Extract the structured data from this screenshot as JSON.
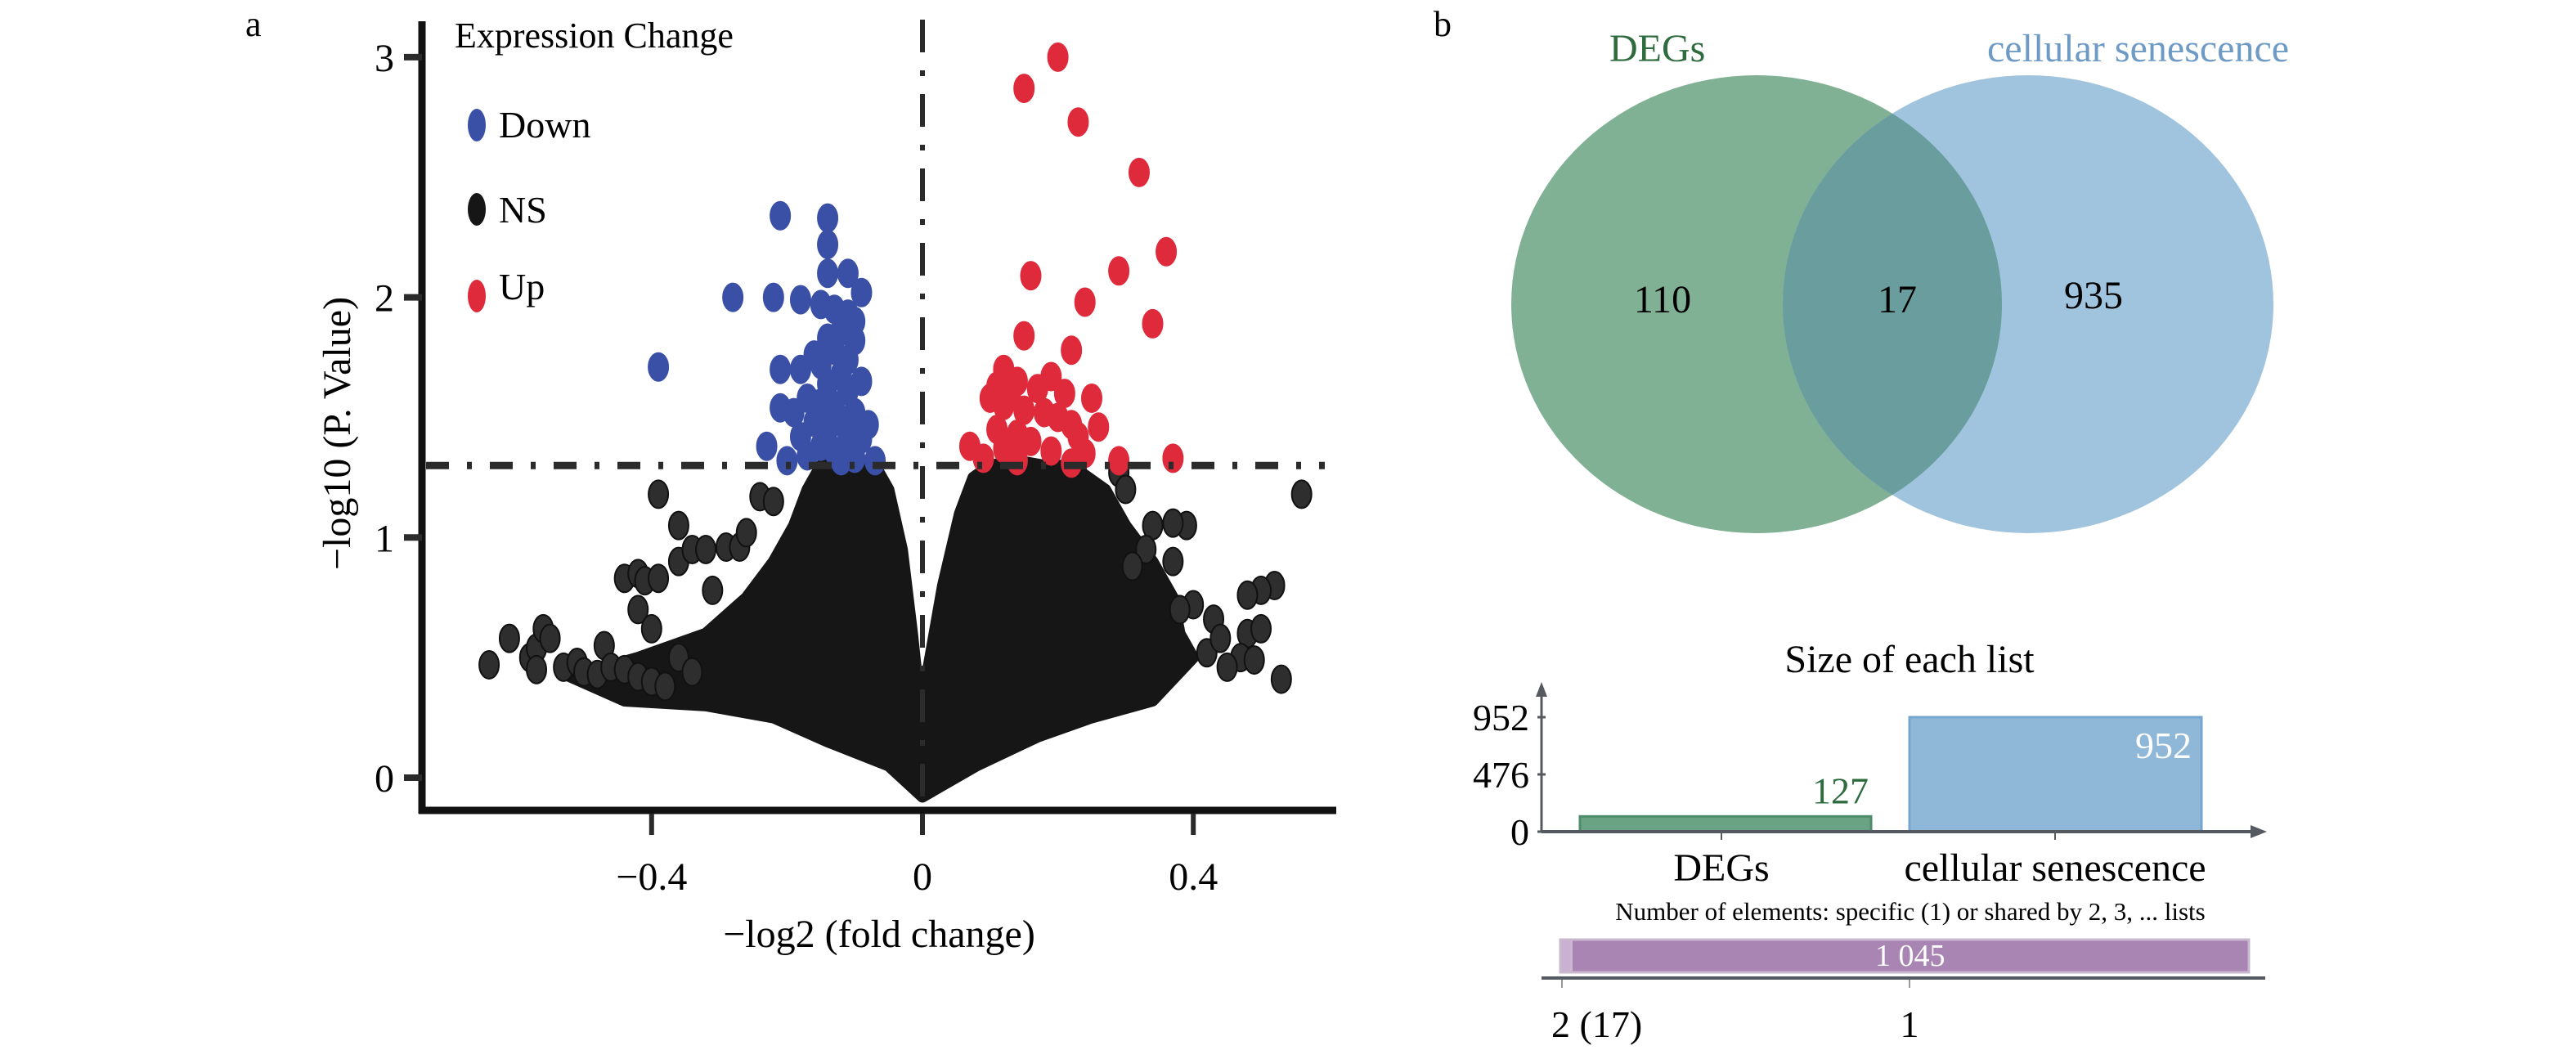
{
  "panel_labels": {
    "a": "a",
    "b": "b"
  },
  "colors": {
    "down": "#3a4fa6",
    "ns": "#161616",
    "up": "#de2a3a",
    "degs": "#6aa383",
    "degs_text": "#2e6b3e",
    "cellular": "#8fb8d8",
    "cellular_text": "#6e9ac6",
    "overlap": "#6a9e9e",
    "purple": "#a985b3",
    "axis": "#111111",
    "gray_axis": "#555a60"
  },
  "chart_data": [
    {
      "id": "volcano",
      "type": "scatter",
      "title": "",
      "xlabel": "−log2 (fold change)",
      "ylabel": "−log10 (P. Value)",
      "xlim": [
        -0.66,
        0.63
      ],
      "ylim": [
        -0.13,
        3.05
      ],
      "xticks": [
        {
          "v": -0.4,
          "label": "−0.4"
        },
        {
          "v": 0,
          "label": "0"
        },
        {
          "v": 0.4,
          "label": "0.4"
        }
      ],
      "yticks": [
        {
          "v": 0,
          "label": "0"
        },
        {
          "v": 1,
          "label": "1"
        },
        {
          "v": 2,
          "label": "2"
        },
        {
          "v": 3,
          "label": "3"
        }
      ],
      "threshold_y": 1.3,
      "threshold_x": 0,
      "grid": false,
      "legend": {
        "title": "Expression Change",
        "placement": "top-left",
        "entries": [
          {
            "key": "down",
            "label": "Down"
          },
          {
            "key": "ns",
            "label": "NS"
          },
          {
            "key": "up",
            "label": "Up"
          }
        ]
      },
      "series": [
        {
          "name": "Down",
          "key": "down",
          "points": [
            [
              -0.39,
              1.71
            ],
            [
              -0.28,
              2.0
            ],
            [
              -0.22,
              2.0
            ],
            [
              -0.21,
              2.34
            ],
            [
              -0.14,
              2.33
            ],
            [
              -0.14,
              2.22
            ],
            [
              -0.14,
              2.1
            ],
            [
              -0.11,
              2.1
            ],
            [
              -0.09,
              2.02
            ],
            [
              -0.18,
              1.99
            ],
            [
              -0.15,
              1.97
            ],
            [
              -0.13,
              1.95
            ],
            [
              -0.11,
              1.93
            ],
            [
              -0.1,
              1.9
            ],
            [
              -0.12,
              1.86
            ],
            [
              -0.14,
              1.83
            ],
            [
              -0.1,
              1.82
            ],
            [
              -0.13,
              1.78
            ],
            [
              -0.16,
              1.76
            ],
            [
              -0.11,
              1.74
            ],
            [
              -0.15,
              1.72
            ],
            [
              -0.21,
              1.7
            ],
            [
              -0.18,
              1.7
            ],
            [
              -0.12,
              1.68
            ],
            [
              -0.09,
              1.65
            ],
            [
              -0.14,
              1.64
            ],
            [
              -0.11,
              1.61
            ],
            [
              -0.17,
              1.58
            ],
            [
              -0.15,
              1.56
            ],
            [
              -0.13,
              1.55
            ],
            [
              -0.21,
              1.54
            ],
            [
              -0.19,
              1.52
            ],
            [
              -0.1,
              1.52
            ],
            [
              -0.12,
              1.49
            ],
            [
              -0.16,
              1.48
            ],
            [
              -0.08,
              1.47
            ],
            [
              -0.14,
              1.45
            ],
            [
              -0.11,
              1.43
            ],
            [
              -0.18,
              1.42
            ],
            [
              -0.09,
              1.41
            ],
            [
              -0.23,
              1.38
            ],
            [
              -0.15,
              1.38
            ],
            [
              -0.13,
              1.36
            ],
            [
              -0.17,
              1.34
            ],
            [
              -0.1,
              1.33
            ],
            [
              -0.07,
              1.32
            ],
            [
              -0.12,
              1.32
            ],
            [
              -0.2,
              1.32
            ]
          ]
        },
        {
          "name": "Up",
          "key": "up",
          "points": [
            [
              0.2,
              3.0
            ],
            [
              0.15,
              2.87
            ],
            [
              0.23,
              2.73
            ],
            [
              0.32,
              2.52
            ],
            [
              0.16,
              2.09
            ],
            [
              0.29,
              2.11
            ],
            [
              0.36,
              2.19
            ],
            [
              0.24,
              1.98
            ],
            [
              0.34,
              1.89
            ],
            [
              0.15,
              1.84
            ],
            [
              0.22,
              1.78
            ],
            [
              0.12,
              1.7
            ],
            [
              0.19,
              1.67
            ],
            [
              0.14,
              1.65
            ],
            [
              0.11,
              1.63
            ],
            [
              0.17,
              1.62
            ],
            [
              0.13,
              1.6
            ],
            [
              0.1,
              1.58
            ],
            [
              0.21,
              1.6
            ],
            [
              0.25,
              1.58
            ],
            [
              0.12,
              1.55
            ],
            [
              0.15,
              1.53
            ],
            [
              0.18,
              1.52
            ],
            [
              0.2,
              1.5
            ],
            [
              0.22,
              1.47
            ],
            [
              0.26,
              1.46
            ],
            [
              0.11,
              1.45
            ],
            [
              0.14,
              1.43
            ],
            [
              0.23,
              1.42
            ],
            [
              0.16,
              1.4
            ],
            [
              0.07,
              1.38
            ],
            [
              0.12,
              1.37
            ],
            [
              0.19,
              1.36
            ],
            [
              0.24,
              1.35
            ],
            [
              0.09,
              1.33
            ],
            [
              0.14,
              1.32
            ],
            [
              0.29,
              1.32
            ],
            [
              0.37,
              1.33
            ],
            [
              0.22,
              1.31
            ]
          ]
        },
        {
          "name": "NS",
          "key": "ns",
          "points": [
            [
              -0.64,
              0.47
            ],
            [
              -0.61,
              0.58
            ],
            [
              -0.58,
              0.5
            ],
            [
              -0.57,
              0.54
            ],
            [
              -0.56,
              0.62
            ],
            [
              -0.55,
              0.58
            ],
            [
              -0.57,
              0.45
            ],
            [
              -0.53,
              0.46
            ],
            [
              -0.51,
              0.48
            ],
            [
              -0.5,
              0.44
            ],
            [
              -0.48,
              0.43
            ],
            [
              -0.47,
              0.55
            ],
            [
              -0.46,
              0.46
            ],
            [
              -0.44,
              0.83
            ],
            [
              -0.42,
              0.85
            ],
            [
              -0.42,
              0.7
            ],
            [
              -0.41,
              0.82
            ],
            [
              -0.39,
              0.83
            ],
            [
              -0.39,
              1.18
            ],
            [
              -0.36,
              1.05
            ],
            [
              -0.36,
              0.9
            ],
            [
              -0.34,
              0.95
            ],
            [
              -0.32,
              0.95
            ],
            [
              -0.31,
              0.78
            ],
            [
              -0.29,
              0.96
            ],
            [
              -0.27,
              0.96
            ],
            [
              -0.26,
              1.02
            ],
            [
              -0.24,
              1.17
            ],
            [
              -0.22,
              1.15
            ],
            [
              -0.44,
              0.45
            ],
            [
              -0.42,
              0.42
            ],
            [
              -0.4,
              0.4
            ],
            [
              -0.38,
              0.38
            ],
            [
              -0.36,
              0.5
            ],
            [
              -0.34,
              0.44
            ],
            [
              -0.4,
              0.62
            ],
            [
              0.56,
              1.18
            ],
            [
              0.53,
              0.41
            ],
            [
              0.52,
              0.8
            ],
            [
              0.5,
              0.78
            ],
            [
              0.48,
              0.76
            ],
            [
              0.48,
              0.6
            ],
            [
              0.47,
              0.5
            ],
            [
              0.45,
              0.46
            ],
            [
              0.43,
              0.66
            ],
            [
              0.42,
              0.52
            ],
            [
              0.39,
              1.05
            ],
            [
              0.37,
              1.06
            ],
            [
              0.37,
              0.9
            ],
            [
              0.34,
              1.05
            ],
            [
              0.33,
              0.95
            ],
            [
              0.29,
              1.27
            ],
            [
              0.3,
              1.2
            ],
            [
              0.31,
              0.88
            ],
            [
              0.5,
              0.62
            ],
            [
              0.49,
              0.49
            ],
            [
              0.44,
              0.58
            ],
            [
              0.4,
              0.72
            ],
            [
              0.38,
              0.7
            ]
          ]
        }
      ],
      "ns_dense_region_outline": [
        [
          -0.52,
          0.42
        ],
        [
          -0.42,
          0.5
        ],
        [
          -0.32,
          0.6
        ],
        [
          -0.26,
          0.75
        ],
        [
          -0.22,
          0.9
        ],
        [
          -0.19,
          1.05
        ],
        [
          -0.17,
          1.2
        ],
        [
          -0.15,
          1.3
        ],
        [
          -0.11,
          1.33
        ],
        [
          -0.07,
          1.3
        ],
        [
          -0.05,
          1.2
        ],
        [
          -0.03,
          0.95
        ],
        [
          -0.015,
          0.6
        ],
        [
          0.0,
          0.2
        ],
        [
          0.005,
          0.4
        ],
        [
          0.03,
          0.8
        ],
        [
          0.055,
          1.1
        ],
        [
          0.075,
          1.25
        ],
        [
          0.1,
          1.3
        ],
        [
          0.14,
          1.32
        ],
        [
          0.18,
          1.3
        ],
        [
          0.22,
          1.3
        ],
        [
          0.27,
          1.2
        ],
        [
          0.3,
          1.05
        ],
        [
          0.34,
          0.9
        ],
        [
          0.37,
          0.75
        ],
        [
          0.38,
          0.6
        ],
        [
          0.4,
          0.5
        ],
        [
          0.34,
          0.32
        ],
        [
          0.25,
          0.25
        ],
        [
          0.17,
          0.17
        ],
        [
          0.08,
          0.05
        ],
        [
          0.0,
          -0.08
        ],
        [
          -0.05,
          0.05
        ],
        [
          -0.14,
          0.15
        ],
        [
          -0.22,
          0.25
        ],
        [
          -0.32,
          0.3
        ],
        [
          -0.44,
          0.32
        ]
      ]
    },
    {
      "id": "venn",
      "type": "venn",
      "sets": [
        {
          "name": "DEGs",
          "only": 110
        },
        {
          "name": "cellular senescence",
          "only": 935
        }
      ],
      "intersection": 17
    },
    {
      "id": "list-sizes",
      "type": "bar",
      "title": "Size of each list",
      "categories": [
        "DEGs",
        "cellular senescence"
      ],
      "values": [
        127,
        952
      ],
      "value_labels": [
        "127",
        "952"
      ],
      "ylim": [
        0,
        1100
      ],
      "yticks": [
        {
          "v": 0,
          "label": "0"
        },
        {
          "v": 476,
          "label": "476"
        },
        {
          "v": 952,
          "label": "952"
        }
      ],
      "grid": false
    },
    {
      "id": "shared-elements",
      "type": "bar",
      "orientation": "horizontal-stacked",
      "title": "Number of elements: specific (1) or shared by 2, 3, ... lists",
      "segments": [
        {
          "key": "2",
          "label": "2 (17)",
          "value": 17
        },
        {
          "key": "1",
          "label": "1",
          "value": 1045,
          "value_label": "1 045"
        }
      ]
    }
  ]
}
